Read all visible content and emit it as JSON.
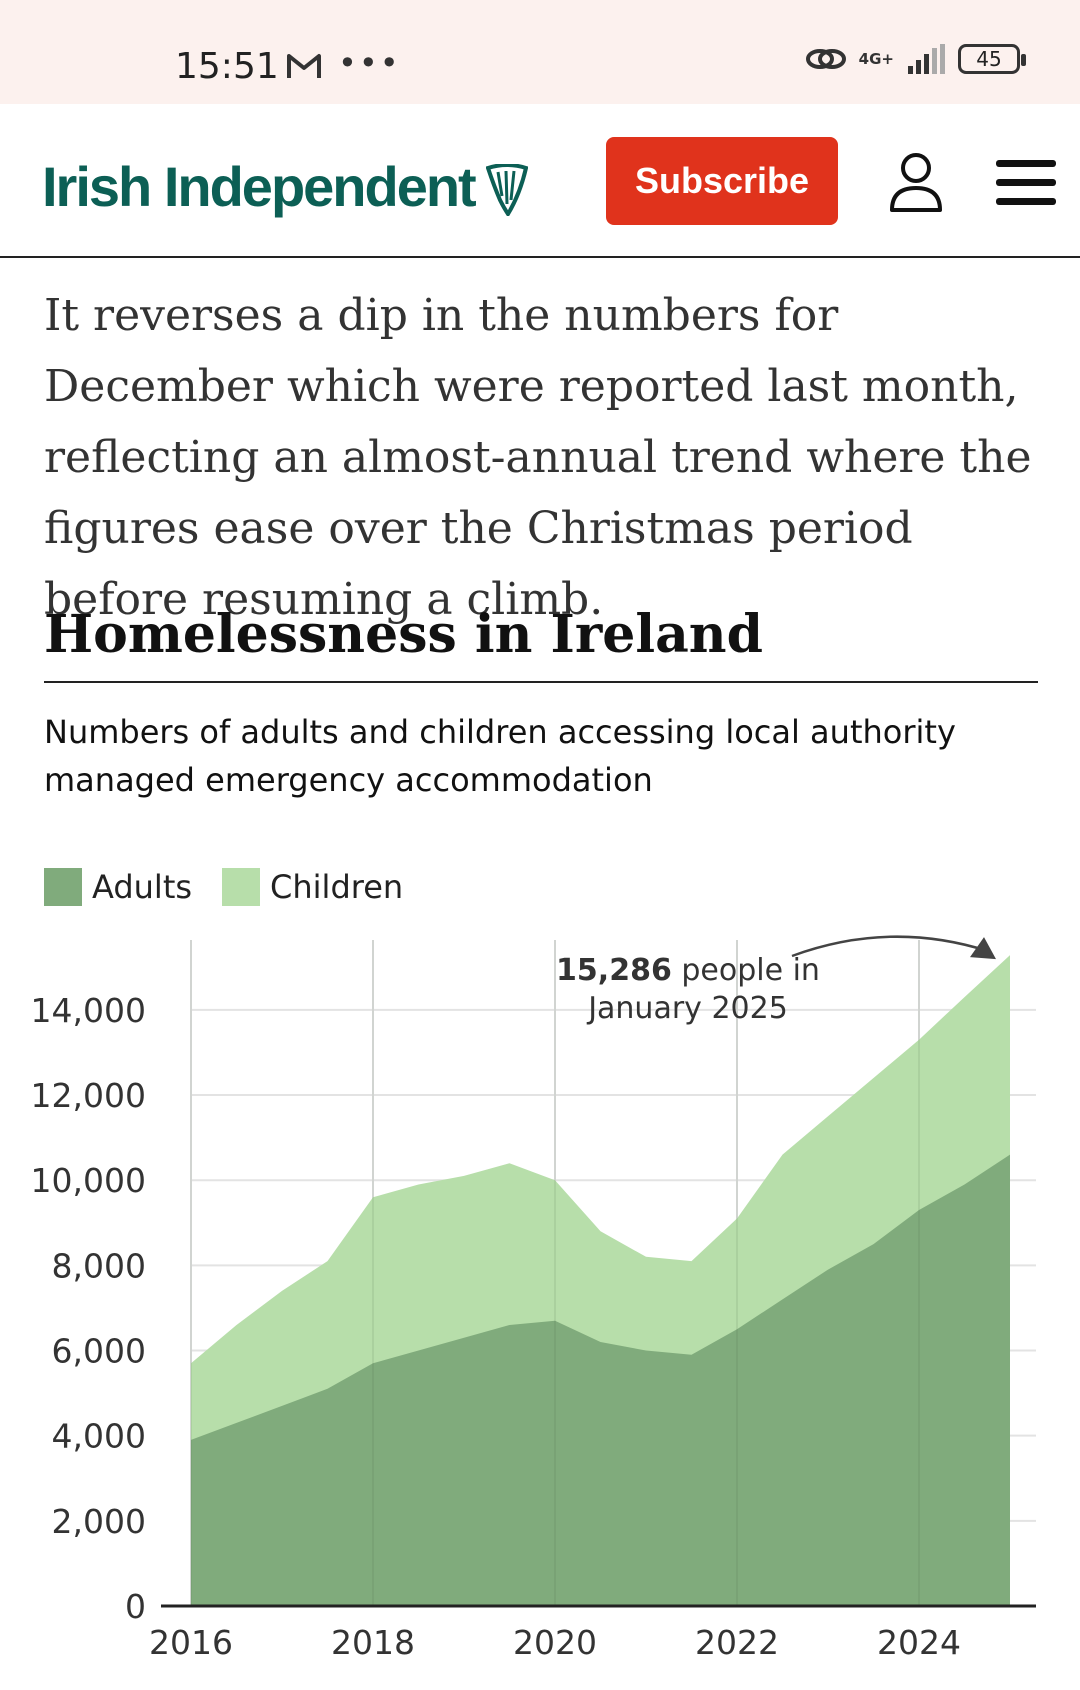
{
  "status_bar": {
    "time": "15:51",
    "network": "4G+",
    "battery": "45"
  },
  "header": {
    "brand": "Irish Independent",
    "subscribe_label": "Subscribe"
  },
  "article": {
    "paragraph": "It reverses a dip in the numbers for December which were reported last month, reflecting an almost-annual trend where the figures ease over the Christmas period before resuming a climb."
  },
  "chart_data": {
    "type": "area",
    "title": "Homelessness in Ireland",
    "subtitle": "Numbers of adults and children accessing local authority managed emergency accommodation",
    "stacked": true,
    "xlim": [
      2016,
      2025.1
    ],
    "ylim": [
      0,
      15500
    ],
    "x_ticks": [
      "2016",
      "2018",
      "2020",
      "2022",
      "2024"
    ],
    "y_ticks": [
      "0",
      "2,000",
      "4,000",
      "6,000",
      "8,000",
      "10,000",
      "12,000",
      "14,000"
    ],
    "grid": true,
    "legend": "top-left",
    "colors": {
      "adults": "#80ab7c",
      "children": "#b7deaa"
    },
    "annotation": {
      "bold": "15,286",
      "line1_rest": " people in",
      "line2": "January 2025"
    },
    "x": [
      2016.0,
      2016.5,
      2017.0,
      2017.5,
      2018.0,
      2018.5,
      2019.0,
      2019.5,
      2020.0,
      2020.5,
      2021.0,
      2021.5,
      2022.0,
      2022.5,
      2023.0,
      2023.5,
      2024.0,
      2024.5,
      2025.0
    ],
    "series": [
      {
        "name": "Adults",
        "values": [
          3900,
          4300,
          4700,
          5100,
          5700,
          6000,
          6300,
          6600,
          6700,
          6200,
          6000,
          5900,
          6500,
          7200,
          7900,
          8500,
          9300,
          9900,
          10600
        ]
      },
      {
        "name": "Children",
        "values": [
          1800,
          2300,
          2700,
          3000,
          3900,
          3900,
          3800,
          3800,
          3300,
          2600,
          2200,
          2200,
          2600,
          3400,
          3600,
          3900,
          4000,
          4400,
          4686
        ]
      }
    ]
  }
}
